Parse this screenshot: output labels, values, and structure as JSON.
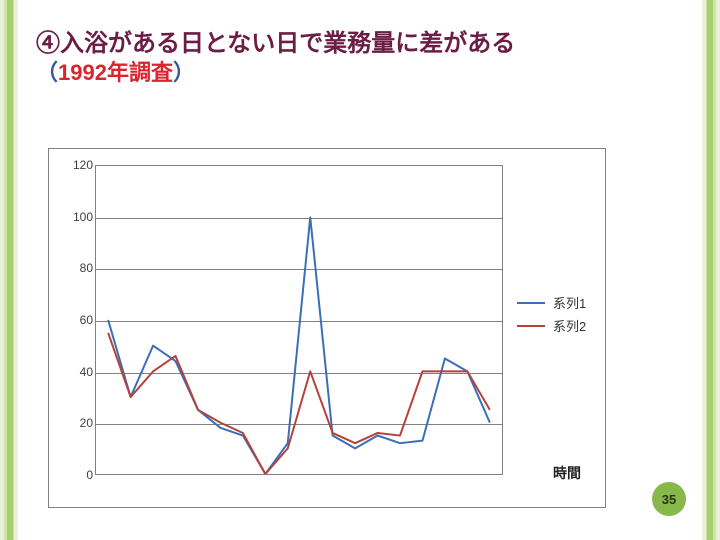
{
  "decor": {
    "stripe_outer": "#e8f1d8",
    "stripe_mid": "#cfe2ac",
    "stripe_core": "#a7cf6b"
  },
  "title": {
    "circled_num": "④",
    "main": "入浴がある日とない日で業務量に差がある",
    "paren_open": "（",
    "year": "1992年調査",
    "paren_close": "）",
    "color_main": "#6b1d45",
    "color_paren": "#325a9a",
    "color_year": "#d8252f",
    "fontsize_main": 24,
    "fontsize_sub": 22
  },
  "chart": {
    "type": "line",
    "background_color": "#ffffff",
    "panel_border_color": "#808080",
    "grid_color": "#808080",
    "ylim": [
      0,
      120
    ],
    "ytick_step": 20,
    "yticks": [
      0,
      20,
      40,
      60,
      80,
      100,
      120
    ],
    "x_count": 18,
    "x_axis_label": "時間",
    "tick_fontsize": 12,
    "line_width": 2,
    "series": [
      {
        "name": "系列1",
        "color": "#3a6fb7",
        "values": [
          60,
          30,
          50,
          44,
          25,
          18,
          15,
          0,
          12,
          100,
          15,
          10,
          15,
          12,
          13,
          45,
          40,
          20
        ]
      },
      {
        "name": "系列2",
        "color": "#b5413a",
        "values": [
          55,
          30,
          40,
          46,
          25,
          20,
          16,
          0,
          10,
          40,
          16,
          12,
          16,
          15,
          40,
          40,
          40,
          25
        ]
      }
    ],
    "legend": {
      "fontsize": 13,
      "text_color": "#333333"
    }
  },
  "page_number": {
    "value": "35",
    "bg": "#89b84a",
    "fg": "#23351a"
  }
}
